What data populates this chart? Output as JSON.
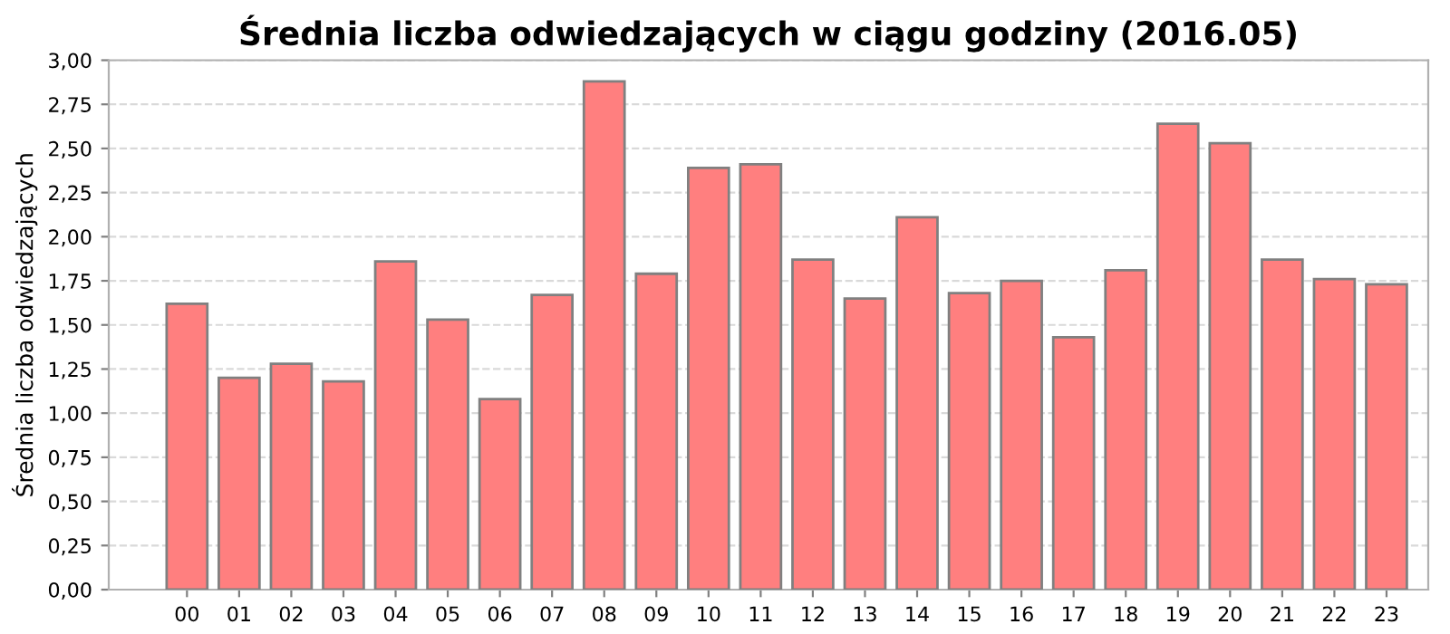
{
  "chart_data": {
    "type": "bar",
    "title": "Średnia liczba odwiedzających w ciągu godziny (2016.05)",
    "ylabel": "Średnia liczba odwiedzających",
    "categories": [
      "00",
      "01",
      "02",
      "03",
      "04",
      "05",
      "06",
      "07",
      "08",
      "09",
      "10",
      "11",
      "12",
      "13",
      "14",
      "15",
      "16",
      "17",
      "18",
      "19",
      "20",
      "21",
      "22",
      "23"
    ],
    "values": [
      1.62,
      1.2,
      1.28,
      1.18,
      1.86,
      1.53,
      1.08,
      1.67,
      2.88,
      1.79,
      2.39,
      2.41,
      1.87,
      1.65,
      2.11,
      1.68,
      1.75,
      1.43,
      1.81,
      2.64,
      2.53,
      1.87,
      1.76,
      1.73
    ],
    "color": "#ff7f7f",
    "ylim": [
      0,
      3
    ],
    "yticks": [
      {
        "value": 0,
        "label": "0,00"
      },
      {
        "value": 0.25,
        "label": "0,25"
      },
      {
        "value": 0.5,
        "label": "0,50"
      },
      {
        "value": 0.75,
        "label": "0,75"
      },
      {
        "value": 1,
        "label": "1,00"
      },
      {
        "value": 1.25,
        "label": "1,25"
      },
      {
        "value": 1.5,
        "label": "1,50"
      },
      {
        "value": 1.75,
        "label": "1,75"
      },
      {
        "value": 2,
        "label": "2,00"
      },
      {
        "value": 2.25,
        "label": "2,25"
      },
      {
        "value": 2.5,
        "label": "2,50"
      },
      {
        "value": 2.75,
        "label": "2,75"
      },
      {
        "value": 3,
        "label": "3,00"
      }
    ],
    "grid": "y"
  }
}
